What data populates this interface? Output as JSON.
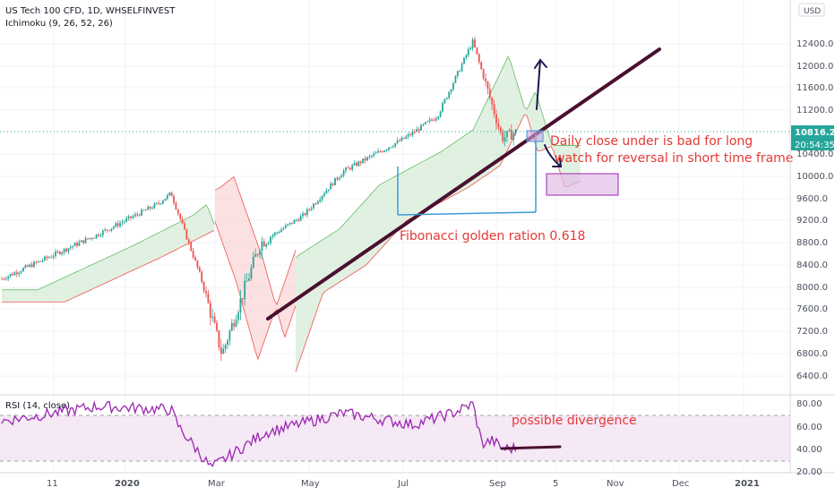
{
  "header": {
    "symbol": "US Tech 100 CFD, 1D, WHSELFINVEST",
    "indicator": "Ichimoku (9, 26, 52, 26)",
    "currency": "USD"
  },
  "price_axis": {
    "ticks": [
      "12400.0",
      "12000.0",
      "11600.0",
      "11200.0",
      "10400.0",
      "10000.0",
      "9600.0",
      "9200.0",
      "8800.0",
      "8400.0",
      "8000.0",
      "7600.0",
      "7200.0",
      "6800.0",
      "6400.0"
    ],
    "current_price": "10816.2",
    "countdown": "20:54:35"
  },
  "rsi_panel": {
    "label": "RSI (14, close)",
    "ticks": [
      "80.00",
      "60.00",
      "40.00",
      "20.00"
    ]
  },
  "time_axis": {
    "labels": [
      "11",
      "2020",
      "Mar",
      "May",
      "Jul",
      "Sep",
      "5",
      "Nov",
      "Dec",
      "2021"
    ]
  },
  "annotations": {
    "daily_close": "Daily close under is bad for long",
    "watch_reversal": "watch for reversal in short time frame",
    "fibonacci": "Fibonacci golden ration 0.618",
    "divergence": "possible divergence"
  },
  "colors": {
    "up_candle": "#26a69a",
    "down_candle": "#ef5350",
    "trendline": "#4a1030",
    "cloud_green": "#c8e6c9",
    "cloud_red": "#f8c9c9",
    "rsi_line": "#9c27b0",
    "annotation_text": "#e53935",
    "fib_lines": "#3d9ad6",
    "arrows": "#1a1a4e",
    "zone_fill": "#e1bee7",
    "price_badge": "#26a69a"
  },
  "chart_data": {
    "type": "candlestick",
    "title": "US Tech 100 CFD, 1D, WHSELFINVEST",
    "y_range": [
      6200,
      12750
    ],
    "x_range": [
      "2019-11-01",
      "2021-01-15"
    ],
    "key_prices": [
      {
        "date": "2019-11-01",
        "price": 8150
      },
      {
        "date": "2020-02-19",
        "price": 9700
      },
      {
        "date": "2020-03-23",
        "price": 6780
      },
      {
        "date": "2020-06-10",
        "price": 10100
      },
      {
        "date": "2020-09-02",
        "price": 12450
      },
      {
        "date": "2020-09-21",
        "price": 10700
      },
      {
        "date": "2020-10-01",
        "price": 10816.2
      }
    ],
    "current_price": 10816.2,
    "trendline": [
      {
        "date": "2020-04-01",
        "price": 7450
      },
      {
        "date": "2020-11-20",
        "price": 12300
      }
    ],
    "demand_zone": {
      "from": "2020-10-01",
      "to": "2020-10-24",
      "low": 9720,
      "high": 10050
    },
    "rsi": {
      "range": [
        20,
        85
      ],
      "overbought": 70,
      "oversold": 30,
      "key_values": [
        {
          "date": "2019-11-01",
          "value": 65
        },
        {
          "date": "2020-02-19",
          "value": 75
        },
        {
          "date": "2020-03-16",
          "value": 24
        },
        {
          "date": "2020-09-02",
          "value": 80
        },
        {
          "date": "2020-09-21",
          "value": 41
        }
      ]
    }
  }
}
